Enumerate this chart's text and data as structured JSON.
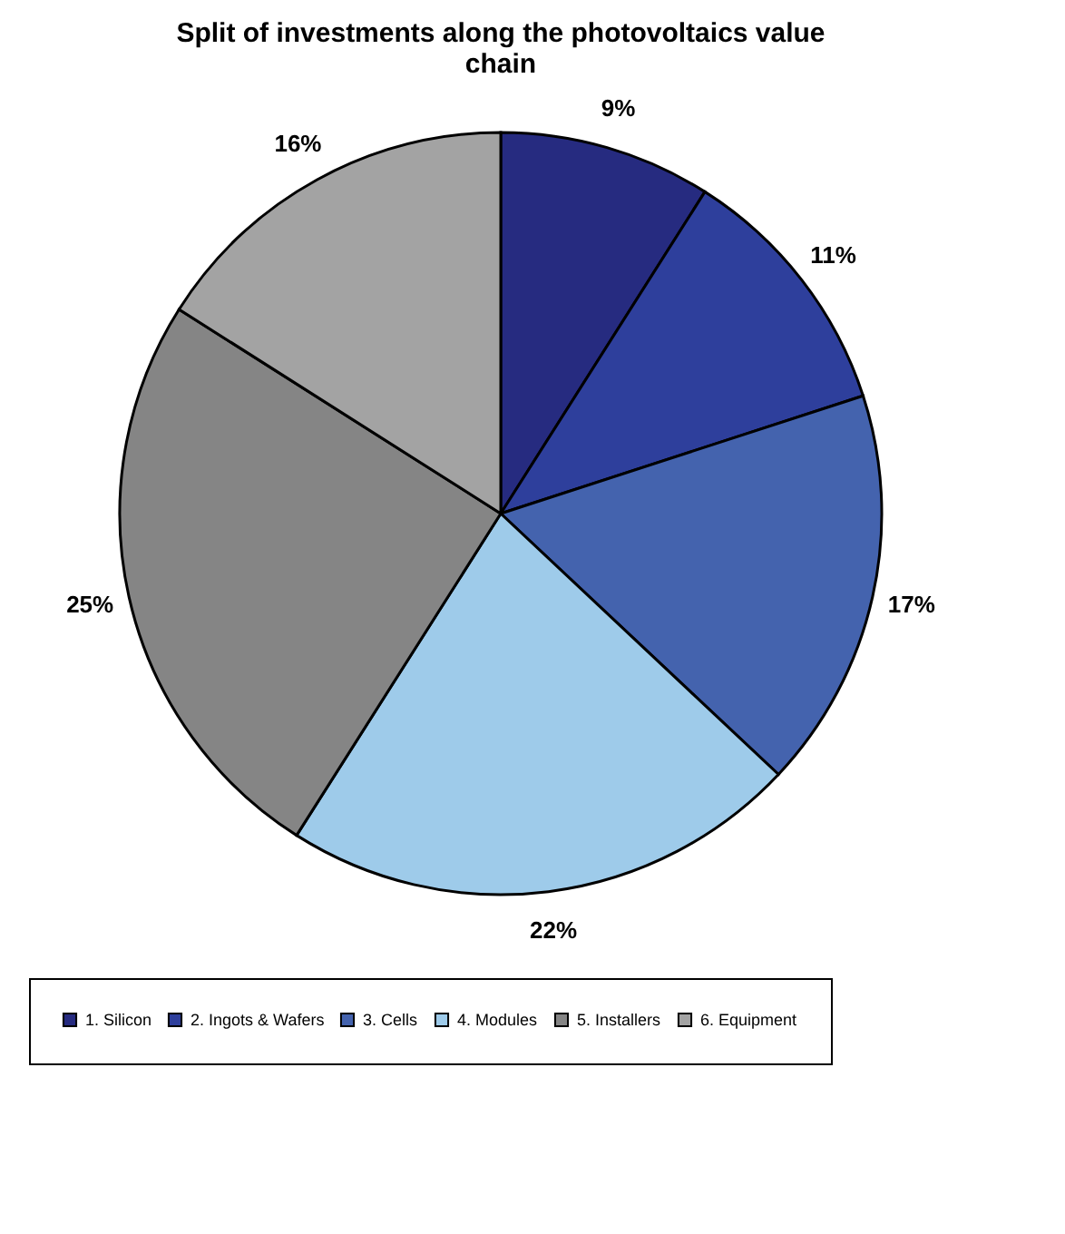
{
  "chart_data": {
    "type": "pie",
    "title": "Split of investments along the photovoltaics value chain",
    "categories": [
      "1. Silicon",
      "2. Ingots & Wafers",
      "3. Cells",
      "4. Modules",
      "5. Installers",
      "6. Equipment"
    ],
    "values": [
      9,
      11,
      17,
      22,
      25,
      16
    ],
    "colors": [
      "#262b80",
      "#2e3f9c",
      "#4463ae",
      "#9ecbea",
      "#858585",
      "#a3a3a3"
    ],
    "value_labels": [
      "9%",
      "11%",
      "17%",
      "22%",
      "25%",
      "16%"
    ],
    "legend": "bottom"
  }
}
